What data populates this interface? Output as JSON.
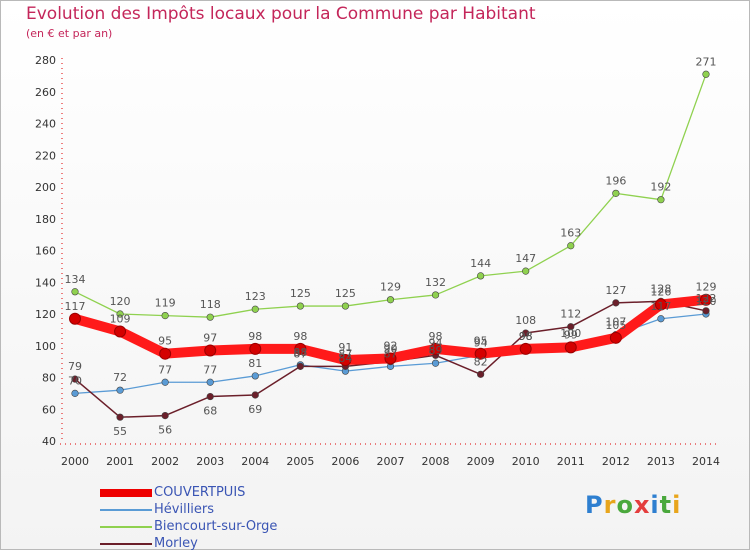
{
  "title": "Evolution des Impôts locaux pour la Commune par Habitant",
  "subtitle": "(en € et par an)",
  "logo": "Proxiti",
  "chart_data": {
    "type": "line",
    "title": "Evolution des Impôts locaux pour la Commune par Habitant",
    "ylabel": "(en € et par an)",
    "xlabel": "",
    "ylim": [
      40,
      280
    ],
    "yticks": [
      40,
      60,
      80,
      100,
      120,
      140,
      160,
      180,
      200,
      220,
      240,
      260,
      280
    ],
    "grid": false,
    "legend_position": "bottom-left",
    "categories": [
      "2000",
      "2001",
      "2002",
      "2003",
      "2004",
      "2005",
      "2006",
      "2007",
      "2008",
      "2009",
      "2010",
      "2011",
      "2012",
      "2013",
      "2014"
    ],
    "series": [
      {
        "name": "COUVERTPUIS",
        "color": "#ee0000",
        "values": [
          117,
          109,
          95,
          97,
          98,
          98,
          91,
          92,
          98,
          95,
          98,
          99,
          105,
          126,
          129
        ]
      },
      {
        "name": "Hévilliers",
        "color": "#5a9bd5",
        "values": [
          70,
          72,
          77,
          77,
          81,
          88,
          84,
          87,
          89,
          94,
          98,
          100,
          107,
          117,
          120
        ]
      },
      {
        "name": "Biencourt-sur-Orge",
        "color": "#8fd14f",
        "values": [
          134,
          120,
          119,
          118,
          123,
          125,
          125,
          129,
          132,
          144,
          147,
          163,
          196,
          192,
          271
        ]
      },
      {
        "name": "Morley",
        "color": "#6b1f2a",
        "values": [
          79,
          55,
          56,
          68,
          69,
          87,
          87,
          90,
          94,
          82,
          108,
          112,
          127,
          128,
          122
        ]
      }
    ],
    "data_labels": [
      {
        "series": 2,
        "labels": [
          "134",
          "120",
          "119",
          "118",
          "123",
          "125",
          "125",
          "129",
          "132",
          "144",
          "147",
          "163",
          "196",
          "192",
          "271"
        ]
      },
      {
        "series": 0,
        "labels": [
          "117",
          "109",
          "95",
          "97",
          "98",
          "98",
          "91",
          "92",
          "98",
          "95",
          "98",
          "99",
          "105",
          "126",
          "129"
        ]
      },
      {
        "series": 1,
        "labels": [
          "70",
          "72",
          "77",
          "77",
          "81",
          "88",
          "84",
          "87",
          "89",
          "94",
          "98",
          "100",
          "107",
          "117",
          "120"
        ]
      },
      {
        "series": 3,
        "labels": [
          "79",
          "55",
          "56",
          "68",
          "69",
          "87",
          "87",
          "90",
          "94",
          "82",
          "108",
          "112",
          "127",
          "128",
          "122"
        ]
      }
    ]
  }
}
